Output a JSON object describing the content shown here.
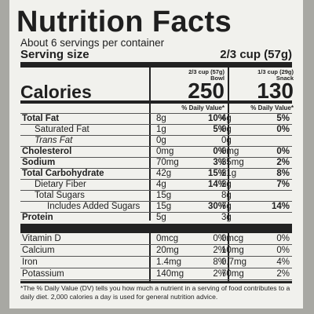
{
  "label": {
    "title": "Nutrition Facts",
    "servings": "About 6 servings per container",
    "serving_size_label": "Serving size",
    "serving_size_value": "2/3 cup (57g)",
    "col1": {
      "size": "2/3 cup (57g)",
      "name": "Bowl",
      "calories": "250"
    },
    "col2": {
      "size": "1/3 cup (29g)",
      "name": "Snack",
      "calories": "130"
    },
    "calories_label": "Calories",
    "dv_header": "% Daily Value*",
    "nutrients": [
      {
        "name": "Total Fat",
        "a1": "8g",
        "p1": "10%",
        "a2": "4g",
        "p2": "5%"
      },
      {
        "name": "Saturated Fat",
        "a1": "1g",
        "p1": "5%",
        "a2": "0g",
        "p2": "0%"
      },
      {
        "name": "Trans Fat",
        "a1": "0g",
        "p1": "",
        "a2": "0g",
        "p2": ""
      },
      {
        "name": "Cholesterol",
        "a1": "0mg",
        "p1": "0%",
        "a2": "0mg",
        "p2": "0%"
      },
      {
        "name": "Sodium",
        "a1": "70mg",
        "p1": "3%",
        "a2": "35mg",
        "p2": "2%"
      },
      {
        "name": "Total Carbohydrate",
        "a1": "42g",
        "p1": "15%",
        "a2": "21g",
        "p2": "8%"
      },
      {
        "name": "Dietary Fiber",
        "a1": "4g",
        "p1": "14%",
        "a2": "2g",
        "p2": "7%"
      },
      {
        "name": "Total Sugars",
        "a1": "15g",
        "p1": "",
        "a2": "8g",
        "p2": ""
      },
      {
        "name": "Includes Added Sugars",
        "a1": "15g",
        "p1": "30%",
        "a2": "7g",
        "p2": "14%"
      },
      {
        "name": "Protein",
        "a1": "5g",
        "p1": "",
        "a2": "3g",
        "p2": ""
      }
    ],
    "vitamins": [
      {
        "name": "Vitamin D",
        "a1": "0mcg",
        "p1": "0%",
        "a2": "0mcg",
        "p2": "0%"
      },
      {
        "name": "Calcium",
        "a1": "20mg",
        "p1": "2%",
        "a2": "10mg",
        "p2": "0%"
      },
      {
        "name": "Iron",
        "a1": "1.4mg",
        "p1": "8%",
        "a2": "0.7mg",
        "p2": "4%"
      },
      {
        "name": "Potassium",
        "a1": "140mg",
        "p1": "2%",
        "a2": "70mg",
        "p2": "2%"
      }
    ],
    "footnote": "*The % Daily Value (DV) tells you how much a nutrient in a serving of food contributes to a daily diet. 2,000 calories a day is used for general nutrition advice."
  }
}
